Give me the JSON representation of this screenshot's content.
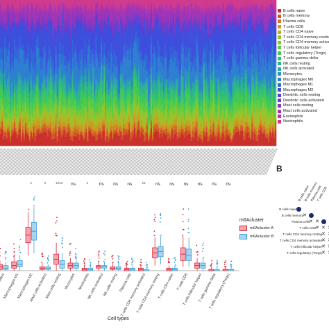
{
  "chart_data": [
    {
      "type": "bar",
      "stacked": true,
      "sample_count": 200,
      "legend": [
        {
          "name": "B cells naive",
          "color": "#c9302c"
        },
        {
          "name": "B cells memory",
          "color": "#d4552a"
        },
        {
          "name": "Plasma cells",
          "color": "#d27a26"
        },
        {
          "name": "T cells CD8",
          "color": "#c99b22"
        },
        {
          "name": "T cells CD4 naive",
          "color": "#b7b224"
        },
        {
          "name": "T cells CD4 memory resting",
          "color": "#9cc22a"
        },
        {
          "name": "T cells CD4 memory activated",
          "color": "#7ec935"
        },
        {
          "name": "T cells follicular helper",
          "color": "#5fcc42"
        },
        {
          "name": "T cells regulatory (Tregs)",
          "color": "#44c955"
        },
        {
          "name": "T cells gamma delta",
          "color": "#33c26f"
        },
        {
          "name": "NK cells resting",
          "color": "#2cb58b"
        },
        {
          "name": "NK cells activated",
          "color": "#2aa6a6"
        },
        {
          "name": "Monocytes",
          "color": "#2b93bf"
        },
        {
          "name": "Macrophages M0",
          "color": "#2e7fd1"
        },
        {
          "name": "Macrophages M1",
          "color": "#3366d9"
        },
        {
          "name": "Macrophages M2",
          "color": "#3d4fdc"
        },
        {
          "name": "Dendritic cells resting",
          "color": "#5142d6"
        },
        {
          "name": "Dendritic cells activated",
          "color": "#6a3ccd"
        },
        {
          "name": "Mast cells resting",
          "color": "#8538c2"
        },
        {
          "name": "Mast cells activated",
          "color": "#a035b5"
        },
        {
          "name": "Eosinophils",
          "color": "#b936a3"
        },
        {
          "name": "Neutrophils",
          "color": "#cf3a8d"
        }
      ],
      "mean_fractions": [
        0.07,
        0.03,
        0.02,
        0.03,
        0.02,
        0.05,
        0.02,
        0.04,
        0.05,
        0.03,
        0.04,
        0.03,
        0.02,
        0.12,
        0.07,
        0.16,
        0.02,
        0.02,
        0.04,
        0.06,
        0.02,
        0.04
      ]
    },
    {
      "type": "box",
      "xlabel": "Cell types",
      "legend_title": "m6Acluster",
      "series": [
        {
          "name": "m6Acluster A",
          "color": "#d7263d"
        },
        {
          "name": "m6Acluster B",
          "color": "#3a9fd9"
        }
      ],
      "ylim": [
        0,
        0.6
      ],
      "categories": [
        {
          "label": "Mast cells activated",
          "sig": "",
          "A": [
            0.0,
            0.01,
            0.03,
            0.05,
            0.08
          ],
          "B": [
            0.0,
            0.01,
            0.02,
            0.04,
            0.07
          ]
        },
        {
          "label": "Macrophages M1",
          "sig": "",
          "A": [
            0.0,
            0.02,
            0.04,
            0.07,
            0.11
          ],
          "B": [
            0.0,
            0.03,
            0.05,
            0.08,
            0.12
          ]
        },
        {
          "label": "Macrophages M2",
          "sig": "*",
          "A": [
            0.12,
            0.22,
            0.28,
            0.34,
            0.46
          ],
          "B": [
            0.14,
            0.24,
            0.31,
            0.38,
            0.5
          ]
        },
        {
          "label": "Mast cells activated",
          "sig": "*",
          "A": [
            0.0,
            0.01,
            0.02,
            0.03,
            0.06
          ],
          "B": [
            0.0,
            0.01,
            0.02,
            0.03,
            0.05
          ]
        },
        {
          "label": "Mast cells resting",
          "sig": "****",
          "A": [
            0.0,
            0.05,
            0.09,
            0.13,
            0.22
          ],
          "B": [
            0.0,
            0.02,
            0.05,
            0.08,
            0.14
          ]
        },
        {
          "label": "Monocytes",
          "sig": "ns",
          "A": [
            0.0,
            0.02,
            0.04,
            0.06,
            0.1
          ],
          "B": [
            0.0,
            0.02,
            0.04,
            0.06,
            0.1
          ]
        },
        {
          "label": "Neutrophils",
          "sig": "*",
          "A": [
            0.0,
            0.0,
            0.01,
            0.02,
            0.04
          ],
          "B": [
            0.0,
            0.0,
            0.01,
            0.02,
            0.03
          ]
        },
        {
          "label": "NK cells activated",
          "sig": "ns",
          "A": [
            0.0,
            0.02,
            0.03,
            0.04,
            0.07
          ],
          "B": [
            0.0,
            0.02,
            0.03,
            0.04,
            0.07
          ]
        },
        {
          "label": "NK cells resting",
          "sig": "ns",
          "A": [
            0.0,
            0.01,
            0.02,
            0.03,
            0.06
          ],
          "B": [
            0.0,
            0.01,
            0.02,
            0.03,
            0.06
          ]
        },
        {
          "label": "Plasma cells",
          "sig": "ns",
          "A": [
            0.0,
            0.0,
            0.01,
            0.02,
            0.04
          ],
          "B": [
            0.0,
            0.0,
            0.01,
            0.02,
            0.04
          ]
        },
        {
          "label": "T cells CD4 memory activated",
          "sig": "**",
          "A": [
            0.0,
            0.0,
            0.01,
            0.02,
            0.04
          ],
          "B": [
            0.0,
            0.0,
            0.0,
            0.01,
            0.02
          ]
        },
        {
          "label": "T cells CD4 memory resting",
          "sig": "ns",
          "A": [
            0.04,
            0.1,
            0.14,
            0.18,
            0.26
          ],
          "B": [
            0.05,
            0.11,
            0.15,
            0.19,
            0.27
          ]
        },
        {
          "label": "T cells CD4 naive",
          "sig": "ns",
          "A": [
            0.0,
            0.0,
            0.01,
            0.02,
            0.04
          ],
          "B": [
            0.0,
            0.0,
            0.01,
            0.02,
            0.04
          ]
        },
        {
          "label": "T cells CD8",
          "sig": "ns",
          "A": [
            0.03,
            0.08,
            0.13,
            0.18,
            0.27
          ],
          "B": [
            0.03,
            0.08,
            0.12,
            0.17,
            0.26
          ]
        },
        {
          "label": "T cells follicular helper",
          "sig": "ns",
          "A": [
            0.0,
            0.02,
            0.04,
            0.06,
            0.1
          ],
          "B": [
            0.0,
            0.02,
            0.04,
            0.06,
            0.1
          ]
        },
        {
          "label": "T cells gamma delta",
          "sig": "ns",
          "A": [
            0.0,
            0.0,
            0.0,
            0.01,
            0.03
          ],
          "B": [
            0.0,
            0.0,
            0.0,
            0.01,
            0.03
          ]
        },
        {
          "label": "T cells regulatory (Tregs)",
          "sig": "ns",
          "A": [
            0.0,
            0.0,
            0.01,
            0.01,
            0.03
          ],
          "B": [
            0.0,
            0.0,
            0.01,
            0.01,
            0.03
          ]
        }
      ]
    },
    {
      "type": "heatmap",
      "panel_label": "B",
      "row_labels": [
        "B cells naive",
        "B cells memory",
        "Plasma cells",
        "T cells CD8",
        "T cells CD4 memory resting",
        "T cells CD4 memory activated",
        "T cells follicular helper",
        "T cells regulatory (Tregs)"
      ],
      "col_labels": [
        "B cells naive",
        "B cells memory",
        "Plasma cells",
        "T cells CD8"
      ]
    }
  ]
}
